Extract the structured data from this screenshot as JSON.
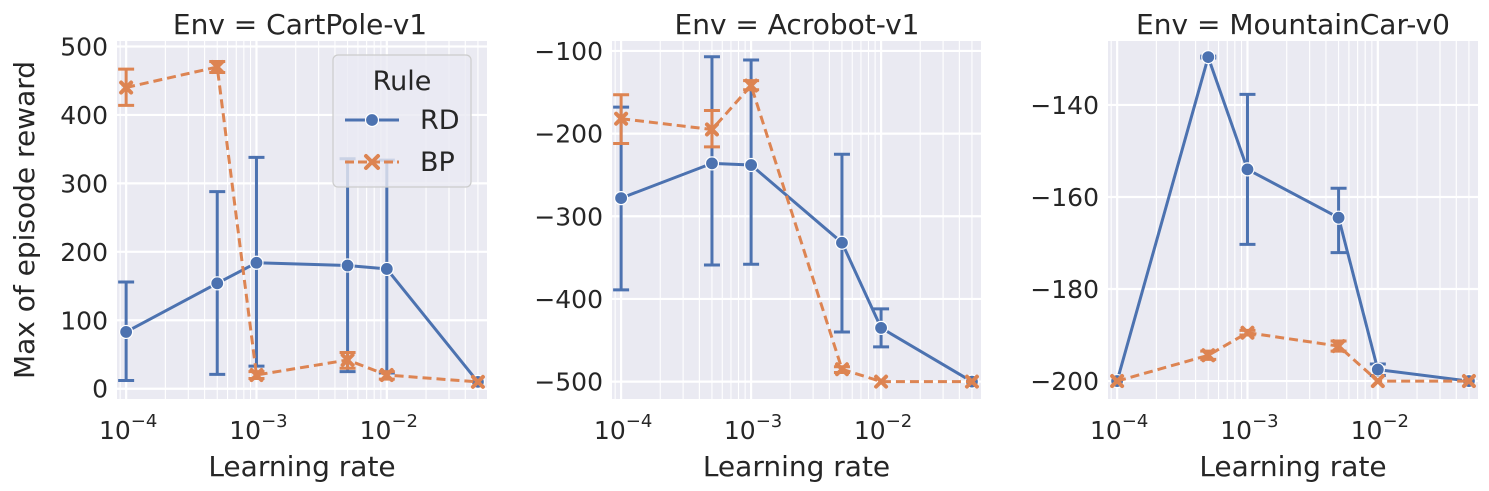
{
  "figure": {
    "ylabel": "Max of episode reward",
    "xlabel": "Learning rate",
    "legend": {
      "title": "Rule",
      "placement": "top-right",
      "panel": 0
    }
  },
  "chart_data": [
    {
      "type": "line",
      "title": "Env = CartPole-v1",
      "xscale": "log",
      "xlim": [
        8.51e-05,
        0.0587
      ],
      "ylim": [
        -15,
        508
      ],
      "xticks": [
        0.0001,
        0.001,
        0.01
      ],
      "xticklabels": [
        "10",
        "10",
        "10"
      ],
      "xtick_exponents": [
        "−4",
        "−3",
        "−2"
      ],
      "yticks": [
        0,
        100,
        200,
        300,
        400,
        500
      ],
      "yticklabels": [
        "0",
        "100",
        "200",
        "300",
        "400",
        "500"
      ],
      "grid": true,
      "series": [
        {
          "name": "RD",
          "color": "#4c72b0",
          "dash": "solid",
          "marker": "circle",
          "x": [
            0.0001,
            0.0005,
            0.001,
            0.005,
            0.01,
            0.05
          ],
          "y": [
            83,
            154,
            184,
            180,
            175,
            10
          ],
          "err_low": [
            12,
            21,
            33,
            25,
            23,
            null
          ],
          "err_high": [
            156,
            288,
            338,
            336,
            334,
            null
          ]
        },
        {
          "name": "BP",
          "color": "#dd8452",
          "dash": "dashed",
          "marker": "x",
          "x": [
            0.0001,
            0.0005,
            0.001,
            0.005,
            0.01,
            0.05
          ],
          "y": [
            440,
            470,
            20,
            42,
            20,
            10
          ],
          "err_low": [
            414,
            462,
            15,
            30,
            14,
            null
          ],
          "err_high": [
            467,
            478,
            25,
            53,
            25,
            null
          ]
        }
      ]
    },
    {
      "type": "line",
      "title": "Env = Acrobot-v1",
      "xscale": "log",
      "xlim": [
        8.51e-05,
        0.0587
      ],
      "ylim": [
        -521,
        -88
      ],
      "xticks": [
        0.0001,
        0.001,
        0.01
      ],
      "xticklabels": [
        "10",
        "10",
        "10"
      ],
      "xtick_exponents": [
        "−4",
        "−3",
        "−2"
      ],
      "yticks": [
        -100,
        -200,
        -300,
        -400,
        -500
      ],
      "yticklabels": [
        "−100",
        "−200",
        "−300",
        "−400",
        "−500"
      ],
      "grid": true,
      "series": [
        {
          "name": "RD",
          "color": "#4c72b0",
          "dash": "solid",
          "marker": "circle",
          "x": [
            0.0001,
            0.0005,
            0.001,
            0.005,
            0.01,
            0.05
          ],
          "y": [
            -278,
            -236,
            -238,
            -332,
            -435,
            -500
          ],
          "err_low": [
            -389,
            -359,
            -358,
            -440,
            -458,
            null
          ],
          "err_high": [
            -168,
            -107,
            -111,
            -225,
            -412,
            null
          ]
        },
        {
          "name": "BP",
          "color": "#dd8452",
          "dash": "dashed",
          "marker": "x",
          "x": [
            0.0001,
            0.0005,
            0.001,
            0.005,
            0.01,
            0.05
          ],
          "y": [
            -182,
            -195,
            -142,
            -485,
            -500,
            -500
          ],
          "err_low": [
            -212,
            -216,
            -147,
            -489,
            null,
            null
          ],
          "err_high": [
            -153,
            -172,
            -136,
            -482,
            null,
            null
          ]
        }
      ]
    },
    {
      "type": "line",
      "title": "Env = MountainCar-v0",
      "xscale": "log",
      "xlim": [
        8.51e-05,
        0.0587
      ],
      "ylim": [
        -203.9,
        -126.1
      ],
      "xticks": [
        0.0001,
        0.001,
        0.01
      ],
      "xticklabels": [
        "10",
        "10",
        "10"
      ],
      "xtick_exponents": [
        "−4",
        "−3",
        "−2"
      ],
      "yticks": [
        -140,
        -160,
        -180,
        -200
      ],
      "yticklabels": [
        "−140",
        "−160",
        "−180",
        "−200"
      ],
      "grid": true,
      "series": [
        {
          "name": "RD",
          "color": "#4c72b0",
          "dash": "solid",
          "marker": "circle",
          "x": [
            0.0001,
            0.0005,
            0.001,
            0.005,
            0.01,
            0.05
          ],
          "y": [
            -200,
            -129.6,
            -154,
            -164.5,
            -197.5,
            -200
          ],
          "err_low": [
            null,
            -129.8,
            -170.3,
            -172.1,
            -198.8,
            null
          ],
          "err_high": [
            null,
            -129.4,
            -137.7,
            -158.1,
            -196.3,
            null
          ]
        },
        {
          "name": "BP",
          "color": "#dd8452",
          "dash": "dashed",
          "marker": "x",
          "x": [
            0.0001,
            0.0005,
            0.001,
            0.005,
            0.01,
            0.05
          ],
          "y": [
            -200,
            -194.4,
            -189.5,
            -192.4,
            -200,
            -200
          ],
          "err_low": [
            null,
            -195.3,
            -190,
            -193.5,
            null,
            null
          ],
          "err_high": [
            null,
            -193.5,
            -189,
            -191.3,
            null,
            null
          ]
        }
      ]
    }
  ]
}
